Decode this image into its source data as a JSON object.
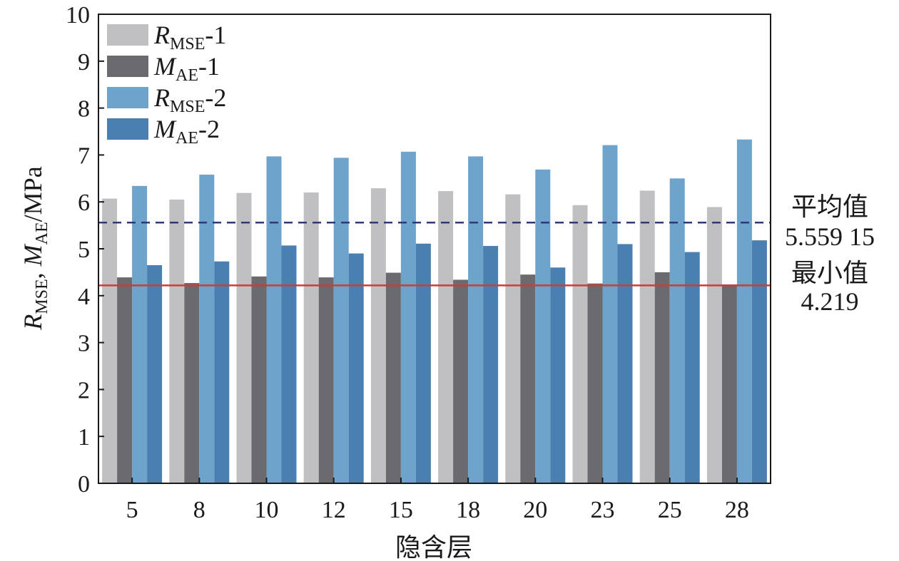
{
  "chart_data": {
    "type": "bar",
    "categories": [
      "5",
      "8",
      "10",
      "12",
      "15",
      "18",
      "20",
      "23",
      "25",
      "28"
    ],
    "series": [
      {
        "name": "R_MSE-1",
        "label_main": "R",
        "label_sub": "MSE",
        "label_suffix": "-1",
        "color": "#c0c0c2",
        "values": [
          6.07,
          6.05,
          6.19,
          6.2,
          6.29,
          6.23,
          6.16,
          5.93,
          6.24,
          5.89
        ]
      },
      {
        "name": "M_AE-1",
        "label_main": "M",
        "label_sub": "AE",
        "label_suffix": "-1",
        "color": "#6b6b6f",
        "values": [
          4.39,
          4.27,
          4.41,
          4.39,
          4.49,
          4.34,
          4.45,
          4.26,
          4.5,
          4.24
        ]
      },
      {
        "name": "R_MSE-2",
        "label_main": "R",
        "label_sub": "MSE",
        "label_suffix": "-2",
        "color": "#6ea3cc",
        "values": [
          6.34,
          6.58,
          6.97,
          6.94,
          7.07,
          6.97,
          6.69,
          7.21,
          6.5,
          7.33
        ]
      },
      {
        "name": "M_AE-2",
        "label_main": "M",
        "label_sub": "AE",
        "label_suffix": "-2",
        "color": "#4a7fb2",
        "values": [
          4.65,
          4.73,
          5.07,
          4.9,
          5.11,
          5.06,
          4.6,
          5.1,
          4.93,
          5.18
        ]
      }
    ],
    "xlabel": "隐含层",
    "ylabel": {
      "p1": "R",
      "p1_sub": "MSE",
      "p2": ", ",
      "p3": "M",
      "p3_sub": "AE",
      "p4": "/MPa"
    },
    "ylim": [
      0,
      10
    ],
    "yticks": [
      "0",
      "1",
      "2",
      "3",
      "4",
      "5",
      "6",
      "7",
      "8",
      "9",
      "10"
    ],
    "grid": false,
    "legend_position": "top-left",
    "reference_lines": [
      {
        "label": "平均值",
        "value_text": "5.559 15",
        "value": 5.55915,
        "style": "dashed",
        "color": "#2e3a7a"
      },
      {
        "label": "最小值",
        "value_text": "4.219",
        "value": 4.219,
        "style": "solid",
        "color": "#d03a3a"
      }
    ]
  }
}
